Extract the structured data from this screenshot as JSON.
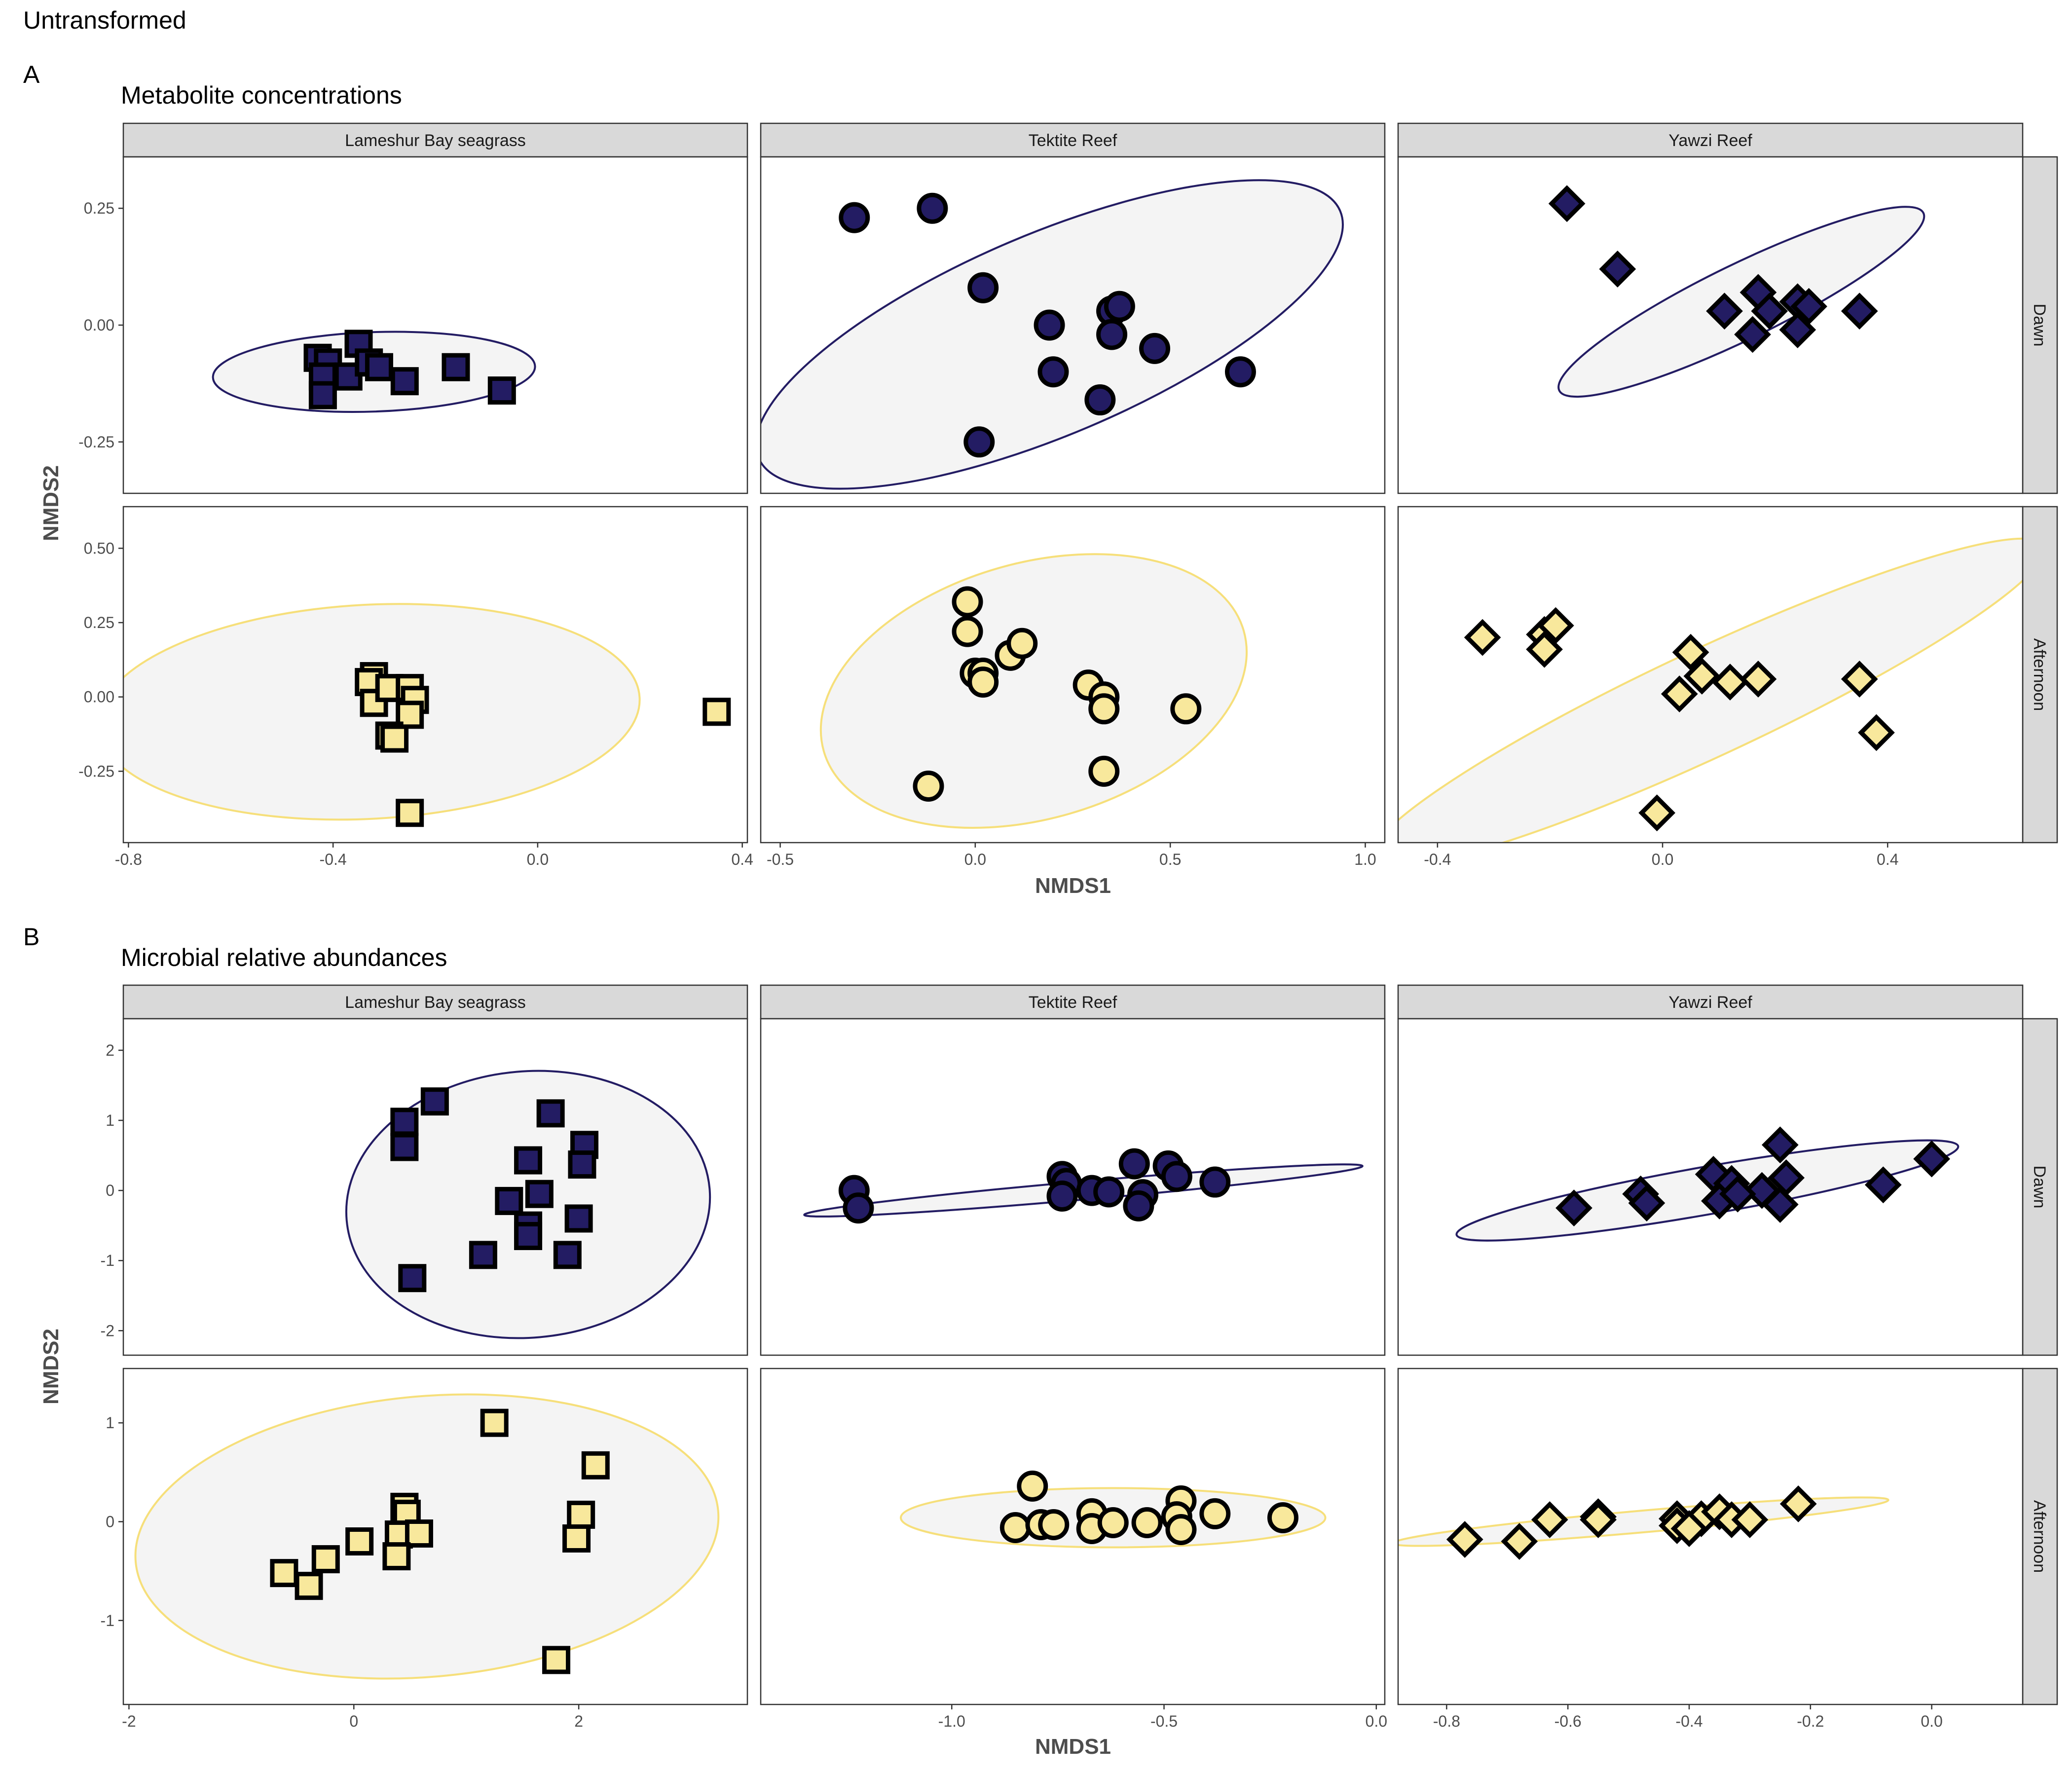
{
  "page": {
    "title": "Untransformed"
  },
  "colors": {
    "dawn": "#231c63",
    "afternoon": "#f8e89c",
    "ellipse_fill": "#f4f4f4",
    "ellipse_dawn": "#231c63",
    "ellipse_afternoon": "#f6df7a",
    "strip_fill": "#d9d9d9",
    "panel_border": "#333333"
  },
  "chart_data": [
    {
      "type": "scatter",
      "panel_label": "A",
      "title": "Metabolite concentrations",
      "xlabel": "NMDS1",
      "ylabel": "NMDS2",
      "facet_columns": [
        "Lameshur Bay seagrass",
        "Tektite Reef",
        "Yawzi Reef"
      ],
      "facet_rows": [
        "Dawn",
        "Afternoon"
      ],
      "row_ylims": [
        [
          -0.36,
          0.36
        ],
        [
          -0.49,
          0.64
        ]
      ],
      "row_yticks": [
        [
          -0.25,
          0.0,
          0.25
        ],
        [
          -0.25,
          0.0,
          0.25,
          0.5
        ]
      ],
      "row_ytick_labels": [
        [
          "-0.25",
          "0.00",
          "0.25"
        ],
        [
          "-0.25",
          "0.00",
          "0.25",
          "0.50"
        ]
      ],
      "col_xlims": [
        [
          -0.81,
          0.41
        ],
        [
          -0.55,
          1.05
        ],
        [
          -0.47,
          0.64
        ]
      ],
      "col_xticks": [
        [
          -0.8,
          -0.4,
          0.0,
          0.4
        ],
        [
          -0.5,
          0.0,
          0.5,
          1.0
        ],
        [
          -0.4,
          0.0,
          0.4
        ]
      ],
      "col_xtick_labels": [
        [
          "-0.8",
          "-0.4",
          "0.0",
          "0.4"
        ],
        [
          "-0.5",
          "0.0",
          "0.5",
          "1.0"
        ],
        [
          "-0.4",
          "0.0",
          "0.4"
        ]
      ],
      "shapes": [
        "square",
        "circle",
        "diamond"
      ],
      "ellipses": [
        [
          {
            "cx": -0.32,
            "cy": -0.1,
            "rx": 0.315,
            "ry": 0.085,
            "angle": -2
          },
          {
            "cx": 0.19,
            "cy": -0.02,
            "rx": 0.81,
            "ry": 0.215,
            "angle": -23
          },
          {
            "cx": 0.14,
            "cy": 0.05,
            "rx": 0.36,
            "ry": 0.08,
            "angle": -26
          }
        ],
        [
          {
            "cx": -0.33,
            "cy": -0.05,
            "rx": 0.53,
            "ry": 0.36,
            "angle": -3
          },
          {
            "cx": 0.15,
            "cy": 0.02,
            "rx": 0.56,
            "ry": 0.43,
            "angle": -16
          },
          {
            "cx": 0.08,
            "cy": -0.02,
            "rx": 0.66,
            "ry": 0.18,
            "angle": -25
          }
        ]
      ],
      "points": [
        [
          [
            [
              -0.43,
              -0.07
            ],
            [
              -0.41,
              -0.08
            ],
            [
              -0.42,
              -0.11
            ],
            [
              -0.42,
              -0.15
            ],
            [
              -0.37,
              -0.11
            ],
            [
              -0.35,
              -0.04
            ],
            [
              -0.33,
              -0.08
            ],
            [
              -0.31,
              -0.09
            ],
            [
              -0.26,
              -0.12
            ],
            [
              -0.16,
              -0.09
            ],
            [
              -0.07,
              -0.14
            ]
          ],
          [
            [
              -0.31,
              0.23
            ],
            [
              -0.11,
              0.25
            ],
            [
              0.02,
              0.08
            ],
            [
              0.19,
              0.0
            ],
            [
              0.2,
              -0.1
            ],
            [
              0.35,
              0.03
            ],
            [
              0.37,
              0.04
            ],
            [
              0.35,
              -0.02
            ],
            [
              0.46,
              -0.05
            ],
            [
              0.68,
              -0.1
            ],
            [
              0.32,
              -0.16
            ],
            [
              0.01,
              -0.25
            ]
          ],
          [
            [
              -0.17,
              0.26
            ],
            [
              -0.08,
              0.12
            ],
            [
              0.11,
              0.03
            ],
            [
              0.17,
              0.07
            ],
            [
              0.19,
              0.03
            ],
            [
              0.24,
              0.05
            ],
            [
              0.26,
              0.04
            ],
            [
              0.16,
              -0.02
            ],
            [
              0.24,
              -0.01
            ],
            [
              0.35,
              0.03
            ]
          ]
        ],
        [
          [
            [
              -0.32,
              0.07
            ],
            [
              -0.33,
              0.05
            ],
            [
              -0.32,
              -0.02
            ],
            [
              -0.29,
              0.03
            ],
            [
              -0.25,
              0.03
            ],
            [
              -0.24,
              -0.01
            ],
            [
              -0.25,
              -0.06
            ],
            [
              -0.29,
              -0.13
            ],
            [
              -0.28,
              -0.14
            ],
            [
              -0.25,
              -0.39
            ],
            [
              0.35,
              -0.05
            ]
          ],
          [
            [
              -0.02,
              0.32
            ],
            [
              -0.02,
              0.22
            ],
            [
              0.09,
              0.14
            ],
            [
              0.12,
              0.18
            ],
            [
              0.0,
              0.08
            ],
            [
              0.02,
              0.08
            ],
            [
              0.02,
              0.05
            ],
            [
              0.29,
              0.04
            ],
            [
              0.33,
              0.0
            ],
            [
              0.33,
              -0.04
            ],
            [
              0.54,
              -0.04
            ],
            [
              0.33,
              -0.25
            ],
            [
              -0.12,
              -0.3
            ]
          ],
          [
            [
              -0.32,
              0.2
            ],
            [
              -0.21,
              0.21
            ],
            [
              -0.19,
              0.24
            ],
            [
              -0.21,
              0.16
            ],
            [
              0.05,
              0.15
            ],
            [
              0.07,
              0.07
            ],
            [
              0.12,
              0.05
            ],
            [
              0.17,
              0.06
            ],
            [
              0.03,
              0.01
            ],
            [
              0.35,
              0.06
            ],
            [
              0.38,
              -0.12
            ],
            [
              -0.01,
              -0.39
            ]
          ]
        ]
      ]
    },
    {
      "type": "scatter",
      "panel_label": "B",
      "title": "Microbial relative abundances",
      "xlabel": "NMDS1",
      "ylabel": "NMDS2",
      "facet_columns": [
        "Lameshur Bay seagrass",
        "Tektite Reef",
        "Yawzi Reef"
      ],
      "facet_rows": [
        "Dawn",
        "Afternoon"
      ],
      "row_ylims": [
        [
          -2.35,
          2.45
        ],
        [
          -1.85,
          1.55
        ]
      ],
      "row_yticks": [
        [
          -2,
          -1,
          0,
          1,
          2
        ],
        [
          -1,
          0,
          1
        ]
      ],
      "row_ytick_labels": [
        [
          "-2",
          "-1",
          "0",
          "1",
          "2"
        ],
        [
          "-1",
          "0",
          "1"
        ]
      ],
      "col_xlims": [
        [
          -2.05,
          3.5
        ],
        [
          -1.45,
          0.02
        ],
        [
          -0.88,
          0.15
        ]
      ],
      "col_xticks": [
        [
          -2,
          0,
          2
        ],
        [
          -1.0,
          -0.5,
          0.0
        ],
        [
          -0.8,
          -0.6,
          -0.4,
          -0.2,
          0.0
        ]
      ],
      "col_xtick_labels": [
        [
          "-2",
          "0",
          "2"
        ],
        [
          "-1.0",
          "-0.5",
          "0.0"
        ],
        [
          "-0.8",
          "-0.6",
          "-0.4",
          "-0.2",
          "0.0"
        ]
      ],
      "shapes": [
        "square",
        "circle",
        "diamond"
      ],
      "ellipses": [
        [
          {
            "cx": 1.55,
            "cy": -0.2,
            "rx": 1.62,
            "ry": 1.9,
            "angle": -5
          },
          {
            "cx": -0.69,
            "cy": 0.0,
            "rx": 0.66,
            "ry": 0.13,
            "angle": -5
          },
          {
            "cx": -0.37,
            "cy": 0.0,
            "rx": 0.42,
            "ry": 0.34,
            "angle": -10
          }
        ],
        [
          {
            "cx": 0.65,
            "cy": -0.15,
            "rx": 2.6,
            "ry": 1.42,
            "angle": -5
          },
          {
            "cx": -0.62,
            "cy": 0.04,
            "rx": 0.5,
            "ry": 0.3,
            "angle": 0
          },
          {
            "cx": -0.48,
            "cy": 0.0,
            "rx": 0.41,
            "ry": 0.11,
            "angle": -5
          }
        ]
      ],
      "points": [
        [
          [
            [
              0.45,
              0.98
            ],
            [
              0.45,
              0.62
            ],
            [
              0.72,
              1.27
            ],
            [
              1.75,
              1.1
            ],
            [
              2.05,
              0.65
            ],
            [
              2.03,
              0.37
            ],
            [
              1.55,
              0.43
            ],
            [
              1.65,
              -0.05
            ],
            [
              1.38,
              -0.15
            ],
            [
              1.55,
              -0.5
            ],
            [
              1.55,
              -0.65
            ],
            [
              2.0,
              -0.4
            ],
            [
              1.15,
              -0.92
            ],
            [
              1.9,
              -0.92
            ],
            [
              0.52,
              -1.25
            ]
          ],
          [
            [
              -1.23,
              0.0
            ],
            [
              -1.22,
              -0.25
            ],
            [
              -0.74,
              0.2
            ],
            [
              -0.73,
              0.1
            ],
            [
              -0.67,
              0.0
            ],
            [
              -0.63,
              -0.02
            ],
            [
              -0.74,
              -0.08
            ],
            [
              -0.57,
              0.38
            ],
            [
              -0.49,
              0.35
            ],
            [
              -0.47,
              0.2
            ],
            [
              -0.55,
              -0.06
            ],
            [
              -0.56,
              -0.22
            ],
            [
              -0.38,
              0.12
            ]
          ],
          [
            [
              -0.59,
              -0.25
            ],
            [
              -0.48,
              -0.05
            ],
            [
              -0.47,
              -0.18
            ],
            [
              -0.36,
              0.23
            ],
            [
              -0.33,
              0.1
            ],
            [
              -0.28,
              0.0
            ],
            [
              -0.25,
              0.65
            ],
            [
              -0.24,
              0.18
            ],
            [
              -0.35,
              -0.15
            ],
            [
              -0.32,
              -0.05
            ],
            [
              -0.25,
              -0.2
            ],
            [
              -0.08,
              0.08
            ],
            [
              0.0,
              0.45
            ]
          ]
        ],
        [
          [
            [
              -0.62,
              -0.52
            ],
            [
              -0.4,
              -0.65
            ],
            [
              -0.25,
              -0.38
            ],
            [
              0.05,
              -0.2
            ],
            [
              0.45,
              0.15
            ],
            [
              0.47,
              0.08
            ],
            [
              0.4,
              -0.13
            ],
            [
              0.58,
              -0.12
            ],
            [
              0.38,
              -0.35
            ],
            [
              1.25,
              1.0
            ],
            [
              2.15,
              0.57
            ],
            [
              2.02,
              0.07
            ],
            [
              1.98,
              -0.17
            ],
            [
              1.8,
              -1.4
            ]
          ],
          [
            [
              -0.81,
              0.36
            ],
            [
              -0.85,
              -0.06
            ],
            [
              -0.79,
              -0.03
            ],
            [
              -0.76,
              -0.03
            ],
            [
              -0.67,
              0.08
            ],
            [
              -0.67,
              -0.07
            ],
            [
              -0.62,
              -0.01
            ],
            [
              -0.54,
              -0.01
            ],
            [
              -0.46,
              0.21
            ],
            [
              -0.47,
              0.05
            ],
            [
              -0.46,
              -0.08
            ],
            [
              -0.38,
              0.08
            ],
            [
              -0.22,
              0.04
            ]
          ],
          [
            [
              -0.77,
              -0.18
            ],
            [
              -0.68,
              -0.2
            ],
            [
              -0.63,
              0.02
            ],
            [
              -0.55,
              0.05
            ],
            [
              -0.55,
              0.02
            ],
            [
              -0.42,
              0.03
            ],
            [
              -0.42,
              -0.04
            ],
            [
              -0.38,
              0.03
            ],
            [
              -0.35,
              0.1
            ],
            [
              -0.33,
              0.02
            ],
            [
              -0.3,
              0.02
            ],
            [
              -0.22,
              0.18
            ],
            [
              -0.4,
              -0.07
            ]
          ]
        ]
      ]
    }
  ]
}
